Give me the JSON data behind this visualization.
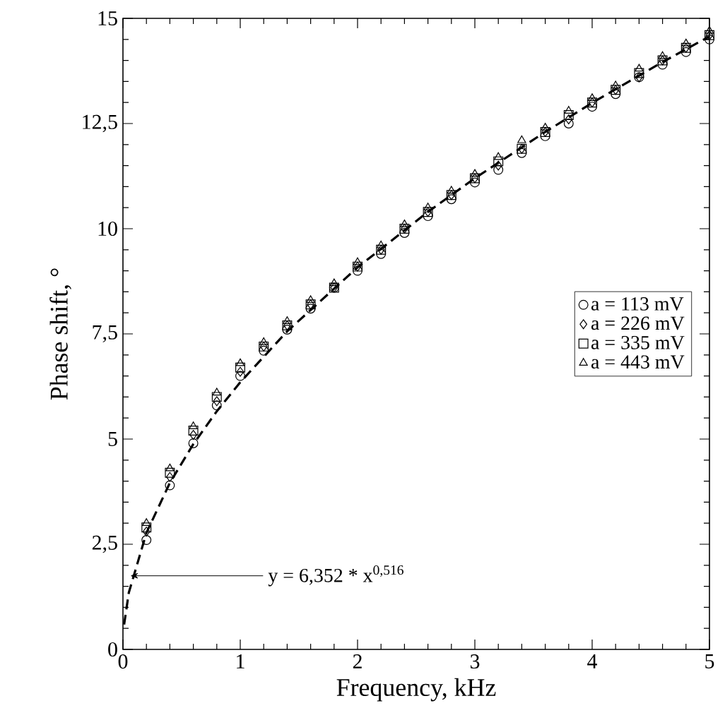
{
  "chart_data": {
    "type": "scatter",
    "xlabel": "Frequency, kHz",
    "ylabel": "Phase shift, °",
    "x": [
      0.2,
      0.4,
      0.6,
      0.8,
      1.0,
      1.2,
      1.4,
      1.6,
      1.8,
      2.0,
      2.2,
      2.4,
      2.6,
      2.8,
      3.0,
      3.2,
      3.4,
      3.6,
      3.8,
      4.0,
      4.2,
      4.4,
      4.6,
      4.8,
      5.0
    ],
    "series": [
      {
        "name": "a = 113 mV",
        "color": "#000000",
        "marker": "circle",
        "values": [
          2.6,
          3.9,
          4.9,
          5.8,
          6.5,
          7.1,
          7.6,
          8.1,
          8.6,
          9.0,
          9.4,
          9.9,
          10.3,
          10.7,
          11.1,
          11.4,
          11.8,
          12.2,
          12.5,
          12.9,
          13.2,
          13.6,
          13.9,
          14.2,
          14.5
        ]
      },
      {
        "name": "a = 226 mV",
        "color": "#000000",
        "marker": "diamond",
        "values": [
          2.8,
          4.1,
          5.1,
          5.9,
          6.6,
          7.2,
          7.7,
          8.2,
          8.6,
          9.1,
          9.5,
          10.0,
          10.4,
          10.8,
          11.2,
          11.5,
          11.9,
          12.3,
          12.6,
          13.0,
          13.3,
          13.6,
          14.0,
          14.3,
          14.6
        ]
      },
      {
        "name": "a = 335 mV",
        "color": "#000000",
        "marker": "square",
        "values": [
          2.9,
          4.2,
          5.2,
          6.0,
          6.7,
          7.2,
          7.7,
          8.2,
          8.6,
          9.1,
          9.5,
          10.0,
          10.4,
          10.8,
          11.2,
          11.6,
          11.9,
          12.3,
          12.7,
          13.0,
          13.3,
          13.7,
          14.0,
          14.3,
          14.6
        ]
      },
      {
        "name": "a = 443 mV",
        "color": "#000000",
        "marker": "triangle",
        "values": [
          3.0,
          4.3,
          5.3,
          6.1,
          6.8,
          7.3,
          7.8,
          8.3,
          8.7,
          9.2,
          9.6,
          10.1,
          10.5,
          10.9,
          11.3,
          11.7,
          12.1,
          12.4,
          12.8,
          13.1,
          13.4,
          13.8,
          14.1,
          14.4,
          14.7
        ]
      },
      {
        "type": "line",
        "line_style": "dashed",
        "color": "#000000",
        "x": [
          0.01,
          0.05,
          0.2,
          0.4,
          0.6,
          0.8,
          1.0,
          1.4,
          2.0,
          2.6,
          3.0,
          3.6,
          4.0,
          4.6,
          5.0
        ],
        "values": [
          0.59,
          1.35,
          2.77,
          3.96,
          4.88,
          5.66,
          6.35,
          7.56,
          9.08,
          10.4,
          11.2,
          12.3,
          12.99,
          13.96,
          14.57
        ]
      }
    ],
    "xlim": [
      0,
      5
    ],
    "ylim": [
      0,
      15
    ],
    "xticks": [
      0,
      1,
      2,
      3,
      4,
      5
    ],
    "yticks": [
      0,
      {
        "value": 2.5,
        "label": "2,5"
      },
      5,
      {
        "value": 7.5,
        "label": "7,5"
      },
      10,
      {
        "value": 12.5,
        "label": "12,5"
      },
      15
    ],
    "grid": false,
    "legend": "right",
    "annotations": [
      {
        "text": "y = 6,352 * x$^{0,516}$",
        "x": 0.05,
        "y": 1.75
      }
    ]
  }
}
